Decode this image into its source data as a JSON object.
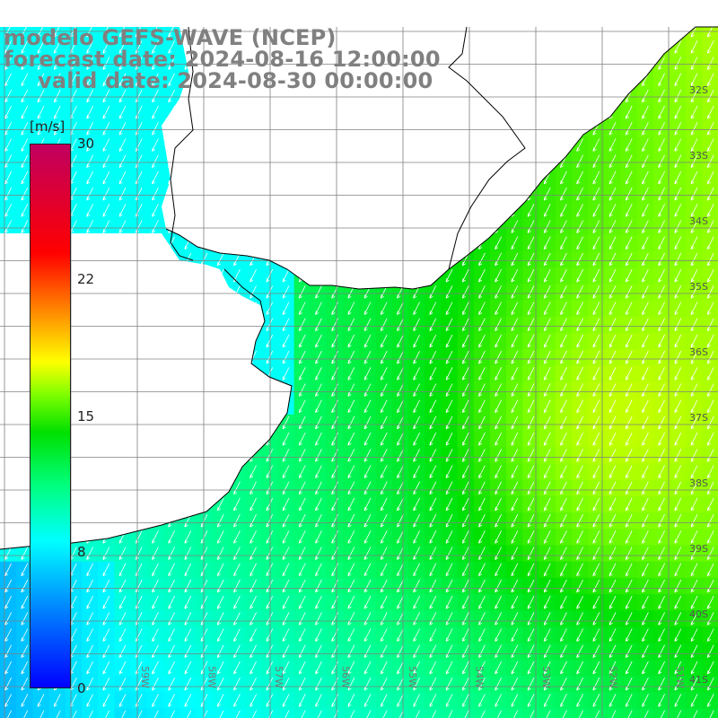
{
  "title": {
    "line1": "modelo GEFS-WAVE (NCEP)",
    "line2": "forecast date: 2024-08-16 12:00:00",
    "line3": "valid date: 2024-08-30 00:00:00"
  },
  "colorbar": {
    "units": "[m/s]",
    "ticks": [
      "30",
      "22",
      "15",
      "8",
      "0"
    ],
    "tick_values": [
      30,
      22,
      15,
      8,
      0
    ],
    "range": [
      0,
      30
    ],
    "colors": [
      "#0000ff",
      "#0080ff",
      "#00ffff",
      "#00ff80",
      "#00e000",
      "#80ff00",
      "#ffff00",
      "#ff8000",
      "#ff0000",
      "#c00060"
    ]
  },
  "map": {
    "lat_labels": [
      "32S",
      "33S",
      "34S",
      "35S",
      "36S",
      "37S",
      "38S",
      "39S",
      "40S",
      "41S"
    ],
    "lon_labels": [
      "59W",
      "58W",
      "57W",
      "56W",
      "55W",
      "54W",
      "53W",
      "52W",
      "51W"
    ],
    "land_color": "#ffffff",
    "grid_color": "#808080",
    "coast_color": "#000000",
    "arrow_color": "#ffffff",
    "wind_direction": "from north-east (arrows pointing south-west)"
  }
}
